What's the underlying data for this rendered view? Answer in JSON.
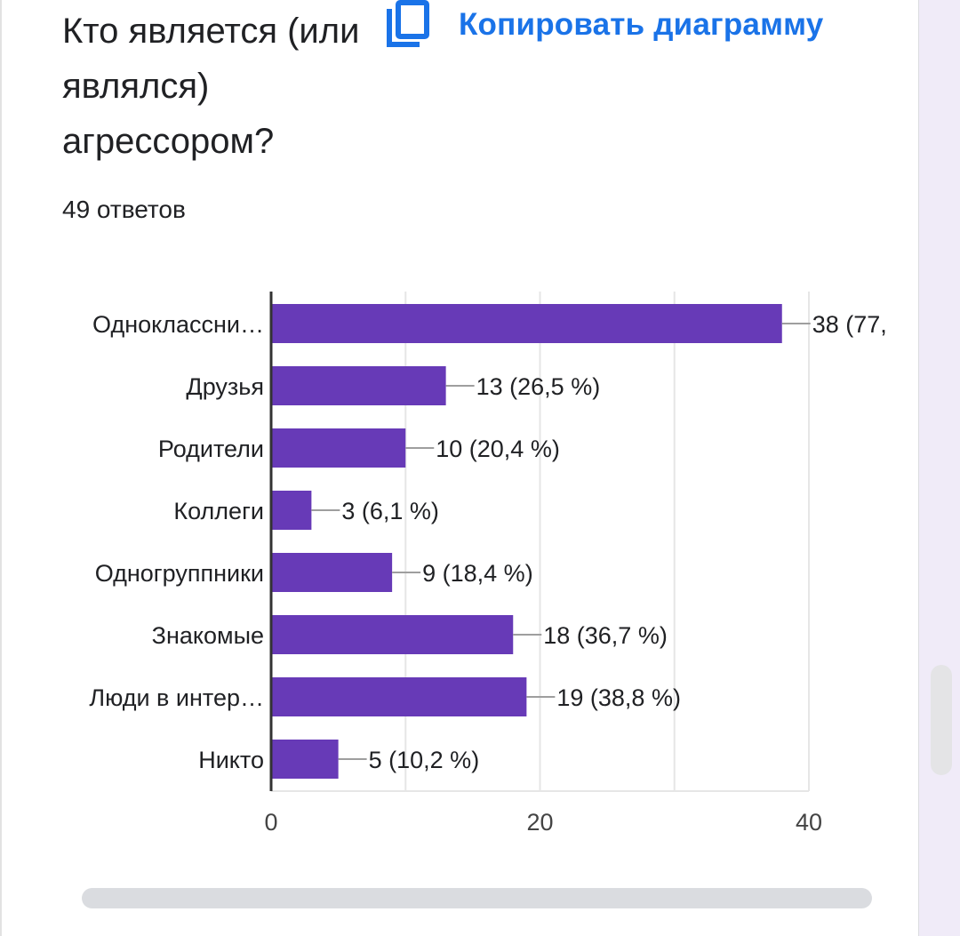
{
  "question": {
    "title": "Кто является (или являлся) агрессором?",
    "responses": "49 ответов"
  },
  "toolbar": {
    "copy_label": "Копировать диаграмму",
    "copy_icon": "copy-icon"
  },
  "colors": {
    "bar": "#673ab7",
    "accent": "#1a73e8",
    "grid": "#e6e6e6",
    "text": "#202124"
  },
  "chart_data": {
    "type": "bar",
    "orientation": "horizontal",
    "categories": [
      "Одноклассни…",
      "Друзья",
      "Родители",
      "Коллеги",
      "Одногруппники",
      "Знакомые",
      "Люди в интер…",
      "Никто"
    ],
    "values": [
      38,
      13,
      10,
      3,
      9,
      18,
      19,
      5
    ],
    "value_labels": [
      "38 (77,",
      "13 (26,5 %)",
      "10 (20,4 %)",
      "3 (6,1 %)",
      "9 (18,4 %)",
      "18 (36,7 %)",
      "19 (38,8 %)",
      "5 (10,2 %)"
    ],
    "xlim": [
      0,
      40
    ],
    "xticks": [
      0,
      20,
      40
    ],
    "grid": true
  }
}
